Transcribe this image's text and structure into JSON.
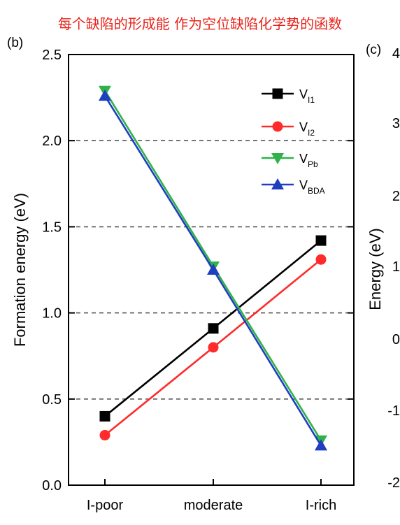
{
  "header": {
    "title": "每个缺陷的形成能 作为空位缺陷化学势的函数"
  },
  "panel_b": {
    "label": "(b)"
  },
  "panel_c": {
    "label": "(c)",
    "ylabel": "Energy (eV)",
    "tick_labels": [
      "4",
      "3",
      "2",
      "1",
      "0",
      "-1",
      "-2"
    ]
  },
  "chart_data": {
    "type": "line",
    "title": "",
    "xlabel": "",
    "ylabel": "Formation energy (eV)",
    "categories": [
      "I-poor",
      "moderate",
      "I-rich"
    ],
    "ylim": [
      0,
      2.5
    ],
    "yticks": [
      "0.0",
      "0.5",
      "1.0",
      "1.5",
      "2.0",
      "2.5"
    ],
    "grid": "horizontal dashed",
    "legend_position": "top-right",
    "series": [
      {
        "name": "V_I1",
        "legend_main": "V",
        "legend_sub": "I1",
        "color": "#000000",
        "marker": "square",
        "values": [
          0.4,
          0.91,
          1.42
        ]
      },
      {
        "name": "V_I2",
        "legend_main": "V",
        "legend_sub": "I2",
        "color": "#ff2a2a",
        "marker": "circle",
        "values": [
          0.29,
          0.8,
          1.31
        ]
      },
      {
        "name": "V_Pb",
        "legend_main": "V",
        "legend_sub": "Pb",
        "color": "#2fb24a",
        "marker": "triangle-down",
        "values": [
          2.29,
          1.27,
          0.26
        ]
      },
      {
        "name": "V_BDA",
        "legend_main": "V",
        "legend_sub": "BDA",
        "color": "#1f3fbf",
        "marker": "triangle-up",
        "values": [
          2.26,
          1.25,
          0.23
        ]
      }
    ]
  }
}
